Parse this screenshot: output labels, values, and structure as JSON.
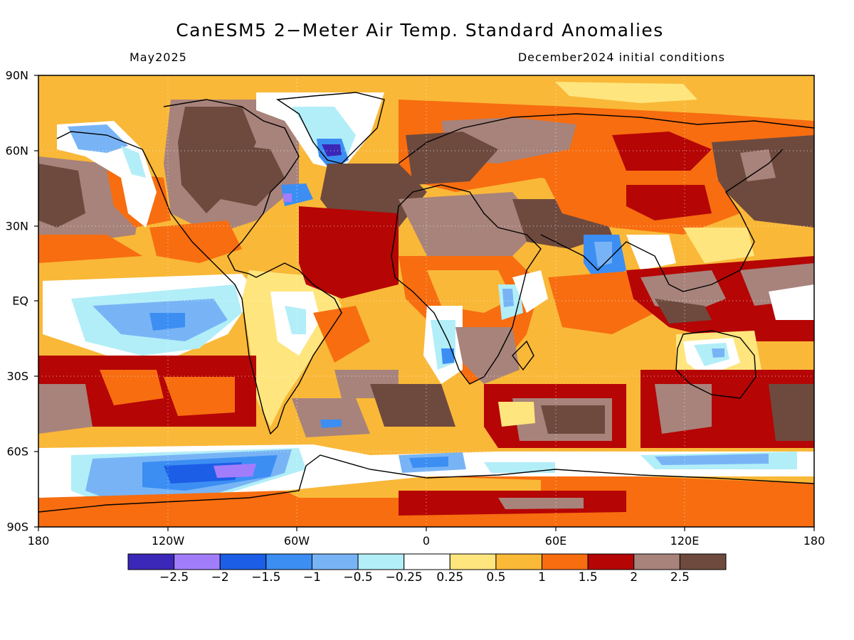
{
  "header": {
    "title": "CanESM5 2−Meter Air Temp. Standard Anomalies",
    "valid_month": "May2025",
    "init_conditions": "December2024 initial conditions"
  },
  "map": {
    "projection": "cylindrical-equidistant",
    "lat_labels": [
      "90N",
      "60N",
      "30N",
      "EQ",
      "30S",
      "60S",
      "90S"
    ],
    "lon_labels": [
      "180",
      "120W",
      "60W",
      "0",
      "60E",
      "120E",
      "180"
    ],
    "background_anomaly_color": "#f9b838",
    "coastline_color": "#000000"
  },
  "colorbar": {
    "colors": [
      "#3b27b7",
      "#a27dfb",
      "#1c5ee6",
      "#3c8ef3",
      "#78b4f5",
      "#b2eef8",
      "#ffffff",
      "#ffe57e",
      "#fab937",
      "#f76d10",
      "#b50505",
      "#a8837b",
      "#6e4a3e"
    ],
    "labels": [
      "−2.5",
      "−2",
      "−1.5",
      "−1",
      "−0.5",
      "−0.25",
      "0.25",
      "0.5",
      "1",
      "1.5",
      "2",
      "2.5"
    ]
  }
}
